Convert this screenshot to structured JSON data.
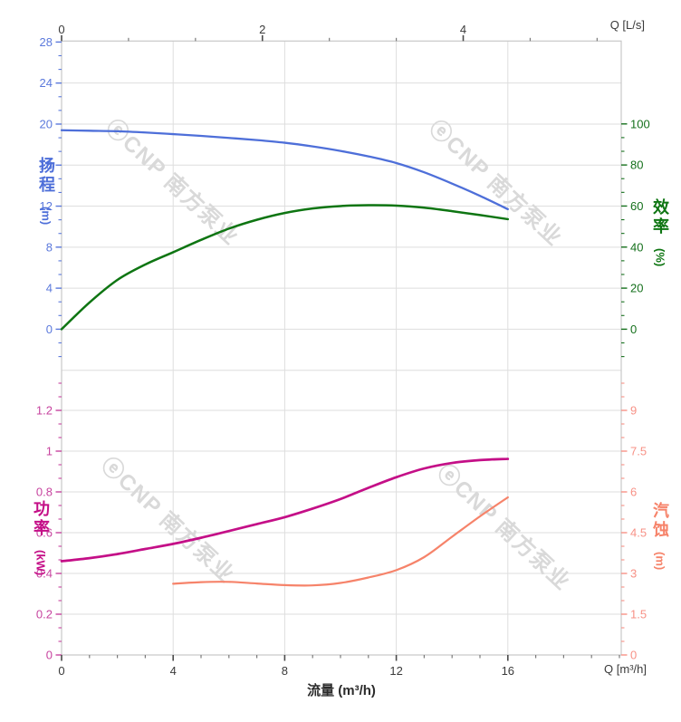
{
  "chart_data": {
    "type": "line",
    "description": "Pump performance curves: head & efficiency (top), power & NPSH (bottom) versus flow",
    "x_axis": {
      "title": "流量 (m³/h)",
      "bottom_unit_label": "Q [m³/h]",
      "top_unit_label": "Q [L/s]",
      "range_m3h": [
        0,
        16
      ],
      "top_ticks_ls": [
        0,
        2,
        4
      ],
      "bottom_ticks": [
        0,
        4,
        8,
        12,
        16
      ],
      "tick_color": "#3a3a3a"
    },
    "panels": [
      {
        "name": "head-efficiency",
        "left_axis": {
          "title": "扬程",
          "unit": "(m)",
          "range": [
            0,
            28
          ],
          "ticks": [
            0,
            4,
            8,
            12,
            16,
            20,
            24,
            28
          ],
          "color": "#4e6fd9",
          "tick_color": "#5b79dc"
        },
        "right_axis": {
          "title": "效率",
          "unit": "(%)",
          "range": [
            0,
            100
          ],
          "ticks": [
            0,
            20,
            40,
            60,
            80,
            100
          ],
          "color": "#0e7512",
          "tick_color": "#15701c"
        },
        "series": [
          {
            "id": "head",
            "label": "扬程",
            "unit": "m",
            "axis": "left",
            "color": "#4e6fd9",
            "x": [
              0,
              1,
              2,
              3,
              4,
              5,
              6,
              7,
              8,
              9,
              10,
              11,
              12,
              13,
              14,
              15,
              16
            ],
            "y": [
              19.4,
              19.35,
              19.3,
              19.18,
              19.02,
              18.85,
              18.65,
              18.44,
              18.18,
              17.82,
              17.38,
              16.85,
              16.2,
              15.3,
              14.2,
              13.0,
              11.7
            ]
          },
          {
            "id": "efficiency",
            "label": "效率",
            "unit": "%",
            "axis": "right",
            "color": "#0e7512",
            "x": [
              0,
              1,
              2,
              3,
              4,
              5,
              6,
              7,
              8,
              9,
              10,
              11,
              12,
              13,
              14,
              15,
              16
            ],
            "y": [
              0,
              13,
              24,
              31.5,
              37.5,
              43.5,
              49,
              53.3,
              56.6,
              58.8,
              60,
              60.4,
              60.2,
              59.2,
              57.5,
              55.6,
              53.6
            ]
          }
        ]
      },
      {
        "name": "power-npsh",
        "left_axis": {
          "title": "功率",
          "unit": "(kW)",
          "range": [
            0,
            1.2
          ],
          "ticks": [
            0,
            0.2,
            0.4,
            0.6,
            0.8,
            1,
            1.2
          ],
          "color": "#c40f87",
          "tick_color": "#c7449f"
        },
        "right_axis": {
          "title": "汽蚀",
          "unit": "(m)",
          "range": [
            0,
            9
          ],
          "ticks": [
            0,
            1.5,
            3,
            4.5,
            6,
            7.5,
            9
          ],
          "color": "#f6836a",
          "tick_color": "#f79186"
        },
        "series": [
          {
            "id": "power",
            "label": "功率",
            "unit": "kW",
            "axis": "left",
            "color": "#c40f87",
            "x": [
              0,
              1,
              2,
              3,
              4,
              5,
              6,
              7,
              8,
              9,
              10,
              11,
              12,
              13,
              14,
              15,
              16
            ],
            "y": [
              0.46,
              0.475,
              0.495,
              0.52,
              0.545,
              0.575,
              0.608,
              0.642,
              0.676,
              0.718,
              0.765,
              0.82,
              0.872,
              0.915,
              0.942,
              0.956,
              0.962
            ]
          },
          {
            "id": "npsh",
            "label": "汽蚀",
            "unit": "m",
            "axis": "right",
            "color": "#f6836a",
            "x": [
              4,
              5,
              6,
              7,
              8,
              9,
              10,
              11,
              12,
              13,
              14,
              15,
              16
            ],
            "y": [
              2.62,
              2.68,
              2.69,
              2.63,
              2.57,
              2.56,
              2.65,
              2.85,
              3.12,
              3.6,
              4.35,
              5.1,
              5.8
            ]
          }
        ]
      }
    ],
    "watermark": {
      "text": "ⓔCNP 南方泵业",
      "color": "#d9d9d9"
    },
    "grid": {
      "line_color": "#dedede",
      "spine_color": "#c8c8c8",
      "grid_on": true
    }
  }
}
